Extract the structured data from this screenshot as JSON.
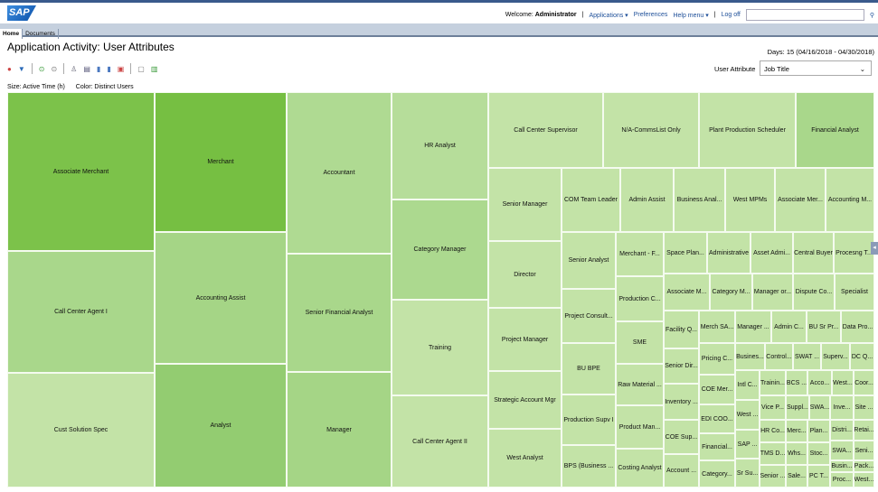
{
  "header": {
    "logo": "SAP",
    "welcome": "Welcome:",
    "user": "Administrator",
    "applications": "Applications ▾",
    "preferences": "Preferences",
    "help": "Help menu ▾",
    "logoff": "Log off",
    "search_value": ""
  },
  "tabs": [
    {
      "label": "Home",
      "active": true
    },
    {
      "label": "Documents",
      "active": false
    }
  ],
  "page": {
    "title": "Application Activity: User Attributes",
    "days": "Days: 15 (04/16/2018 - 04/30/2018)",
    "user_attribute_label": "User Attribute",
    "user_attribute_value": "Job Title",
    "size_legend": "Size: Active Time (h)",
    "color_legend": "Color: Distinct Users"
  },
  "toolbar_icons": [
    "globe-icon",
    "filter-icon",
    "play-icon",
    "chevron-circle-icon",
    "users-icon",
    "export-icon",
    "copy-icon",
    "document-icon",
    "calendar-icon",
    "window-icon",
    "bar-chart-icon"
  ],
  "chart_data": {
    "type": "treemap",
    "size_measure": "Active Time (h)",
    "color_measure": "Distinct Users",
    "cells": [
      {
        "label": "Associate Merchant",
        "color": "#7cc24a"
      },
      {
        "label": "Call Center Agent I",
        "color": "#a9d78b"
      },
      {
        "label": "Cust Solution Spec",
        "color": "#c3e3a7"
      },
      {
        "label": "Merchant",
        "color": "#76bf42"
      },
      {
        "label": "Accounting Assist",
        "color": "#a5d586"
      },
      {
        "label": "Analyst",
        "color": "#93cc71"
      },
      {
        "label": "Accountant",
        "color": "#afda92"
      },
      {
        "label": "Senior Financial Analyst",
        "color": "#a9d78b"
      },
      {
        "label": "Manager",
        "color": "#a5d586"
      },
      {
        "label": "HR Analyst",
        "color": "#b6dd9a"
      },
      {
        "label": "Category Manager",
        "color": "#acd98f"
      },
      {
        "label": "Training",
        "color": "#c3e3a7"
      },
      {
        "label": "Call Center Agent II",
        "color": "#c3e3a7"
      },
      {
        "label": "Call Center Supervisor",
        "color": "#c3e3a7"
      },
      {
        "label": "N/A-CommsList Only",
        "color": "#c3e3a7"
      },
      {
        "label": "Plant Production Scheduler",
        "color": "#c3e3a7"
      },
      {
        "label": "Financial Analyst",
        "color": "#a9d78b"
      },
      {
        "label": "Senior Manager",
        "color": "#c3e3a7"
      },
      {
        "label": "Director",
        "color": "#c3e3a7"
      },
      {
        "label": "Project Manager",
        "color": "#c3e3a7"
      },
      {
        "label": "Strategic Account Mgr",
        "color": "#c3e3a7"
      },
      {
        "label": "West Analyst",
        "color": "#c3e3a7"
      },
      {
        "label": "COM Team Leader",
        "color": "#c3e3a7"
      },
      {
        "label": "Admin Assist",
        "color": "#c3e3a7"
      },
      {
        "label": "Business Anal...",
        "color": "#c3e3a7"
      },
      {
        "label": "West MPMs",
        "color": "#c3e3a7"
      },
      {
        "label": "Associate Mer...",
        "color": "#c3e3a7"
      },
      {
        "label": "Accounting M...",
        "color": "#c3e3a7"
      },
      {
        "label": "Senior Analyst",
        "color": "#c3e3a7"
      },
      {
        "label": "Project Consult...",
        "color": "#c3e3a7"
      },
      {
        "label": "BU BPE",
        "color": "#c3e3a7"
      },
      {
        "label": "Production Supv I",
        "color": "#c3e3a7"
      },
      {
        "label": "BPS (Business ...",
        "color": "#c3e3a7"
      },
      {
        "label": "Merchant - F...",
        "color": "#c3e3a7"
      },
      {
        "label": "Production C...",
        "color": "#c3e3a7"
      },
      {
        "label": "SME",
        "color": "#c3e3a7"
      },
      {
        "label": "Raw Material ...",
        "color": "#c3e3a7"
      },
      {
        "label": "Product Man...",
        "color": "#c3e3a7"
      },
      {
        "label": "Costing Analyst",
        "color": "#c3e3a7"
      },
      {
        "label": "Space Plan...",
        "color": "#c3e3a7"
      },
      {
        "label": "Administrative",
        "color": "#c3e3a7"
      },
      {
        "label": "Asset Admi...",
        "color": "#c3e3a7"
      },
      {
        "label": "Central Buyer",
        "color": "#c3e3a7"
      },
      {
        "label": "Procesng T...",
        "color": "#c3e3a7"
      },
      {
        "label": "Associate M...",
        "color": "#c3e3a7"
      },
      {
        "label": "Category M...",
        "color": "#c3e3a7"
      },
      {
        "label": "Manager or...",
        "color": "#c3e3a7"
      },
      {
        "label": "Dispute Co...",
        "color": "#c3e3a7"
      },
      {
        "label": "Specialist",
        "color": "#c3e3a7"
      },
      {
        "label": "Facility Q...",
        "color": "#c3e3a7"
      },
      {
        "label": "Senior Dir...",
        "color": "#c3e3a7"
      },
      {
        "label": "Inventory ...",
        "color": "#c3e3a7"
      },
      {
        "label": "COE Sup...",
        "color": "#c3e3a7"
      },
      {
        "label": "Account ...",
        "color": "#c3e3a7"
      },
      {
        "label": "Pricing C...",
        "color": "#c3e3a7"
      },
      {
        "label": "COE Mer...",
        "color": "#c3e3a7"
      },
      {
        "label": "EDI COO...",
        "color": "#c3e3a7"
      },
      {
        "label": "Financial...",
        "color": "#c3e3a7"
      },
      {
        "label": "Category...",
        "color": "#c3e3a7"
      },
      {
        "label": "Merch SA...",
        "color": "#c3e3a7"
      },
      {
        "label": "Manager ...",
        "color": "#c3e3a7"
      },
      {
        "label": "Admin C...",
        "color": "#c3e3a7"
      },
      {
        "label": "BU Sr Pr...",
        "color": "#c3e3a7"
      },
      {
        "label": "Data Pro...",
        "color": "#c3e3a7"
      },
      {
        "label": "Busines...",
        "color": "#c3e3a7"
      },
      {
        "label": "Control...",
        "color": "#c3e3a7"
      },
      {
        "label": "SWAT ...",
        "color": "#c3e3a7"
      },
      {
        "label": "Superv...",
        "color": "#c3e3a7"
      },
      {
        "label": "DC Q...",
        "color": "#c3e3a7"
      },
      {
        "label": "Intl C...",
        "color": "#c3e3a7"
      },
      {
        "label": "West ...",
        "color": "#c3e3a7"
      },
      {
        "label": "SAP ...",
        "color": "#c3e3a7"
      },
      {
        "label": "Sr Su...",
        "color": "#c3e3a7"
      },
      {
        "label": "Trainin...",
        "color": "#c3e3a7"
      },
      {
        "label": "BCS ...",
        "color": "#c3e3a7"
      },
      {
        "label": "Acco...",
        "color": "#c3e3a7"
      },
      {
        "label": "West...",
        "color": "#c3e3a7"
      },
      {
        "label": "Coor...",
        "color": "#c3e3a7"
      },
      {
        "label": "Vice P...",
        "color": "#c3e3a7"
      },
      {
        "label": "Suppl...",
        "color": "#c3e3a7"
      },
      {
        "label": "SWA...",
        "color": "#c3e3a7"
      },
      {
        "label": "Inve...",
        "color": "#c3e3a7"
      },
      {
        "label": "Site ...",
        "color": "#c3e3a7"
      },
      {
        "label": "HR Co...",
        "color": "#c3e3a7"
      },
      {
        "label": "TMS D...",
        "color": "#c3e3a7"
      },
      {
        "label": "Senior ...",
        "color": "#c3e3a7"
      },
      {
        "label": "Merc...",
        "color": "#c3e3a7"
      },
      {
        "label": "Whs...",
        "color": "#c3e3a7"
      },
      {
        "label": "Sale...",
        "color": "#c3e3a7"
      },
      {
        "label": "Plan...",
        "color": "#c3e3a7"
      },
      {
        "label": "Stoc...",
        "color": "#c3e3a7"
      },
      {
        "label": "PC T...",
        "color": "#c3e3a7"
      },
      {
        "label": "Distri...",
        "color": "#c3e3a7"
      },
      {
        "label": "SWA...",
        "color": "#c3e3a7"
      },
      {
        "label": "Busin...",
        "color": "#c3e3a7"
      },
      {
        "label": "Proc...",
        "color": "#c3e3a7"
      },
      {
        "label": "Retai...",
        "color": "#c3e3a7"
      },
      {
        "label": "Seni...",
        "color": "#c3e3a7"
      },
      {
        "label": "Pack...",
        "color": "#c3e3a7"
      },
      {
        "label": "West...",
        "color": "#c3e3a7"
      }
    ]
  }
}
